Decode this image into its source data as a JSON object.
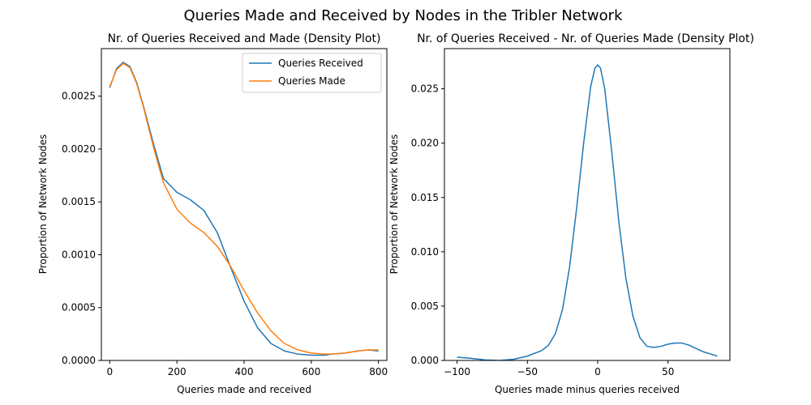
{
  "figure": {
    "suptitle": "Queries Made and Received by Nodes in the Tribler Network"
  },
  "chart_data": [
    {
      "type": "line",
      "title": "Nr. of Queries Received and Made (Density Plot)",
      "xlabel": "Queries made and received",
      "ylabel": "Proportion of Network Nodes",
      "xlim": [
        -25,
        825
      ],
      "ylim": [
        0,
        0.00295
      ],
      "xticks": [
        0,
        200,
        400,
        600,
        800
      ],
      "xtick_labels": [
        "0",
        "200",
        "400",
        "600",
        "800"
      ],
      "yticks": [
        0,
        0.0005,
        0.001,
        0.0015,
        0.002,
        0.0025
      ],
      "ytick_labels": [
        "0.0000",
        "0.0005",
        "0.0010",
        "0.0015",
        "0.0020",
        "0.0025"
      ],
      "grid": false,
      "legend_position": "upper right",
      "series": [
        {
          "name": "Queries Received",
          "color": "#1f77b4",
          "x": [
            0,
            20,
            40,
            60,
            80,
            100,
            130,
            160,
            200,
            240,
            280,
            320,
            360,
            400,
            440,
            480,
            520,
            560,
            600,
            640,
            660,
            700,
            740,
            770,
            800
          ],
          "y": [
            0.00258,
            0.00276,
            0.00282,
            0.00278,
            0.00263,
            0.00241,
            0.00205,
            0.00172,
            0.00159,
            0.00152,
            0.00142,
            0.00121,
            0.00088,
            0.00056,
            0.00031,
            0.00016,
            9e-05,
            6e-05,
            5e-05,
            5e-05,
            6e-05,
            7e-05,
            9e-05,
            0.0001,
            9e-05
          ]
        },
        {
          "name": "Queries Made",
          "color": "#ff7f0e",
          "x": [
            0,
            20,
            40,
            60,
            80,
            100,
            130,
            160,
            200,
            240,
            280,
            320,
            360,
            400,
            440,
            480,
            520,
            560,
            600,
            640,
            660,
            700,
            740,
            770,
            800
          ],
          "y": [
            0.00259,
            0.00275,
            0.00281,
            0.00277,
            0.00262,
            0.0024,
            0.00202,
            0.00168,
            0.00143,
            0.0013,
            0.00121,
            0.00108,
            0.00089,
            0.00066,
            0.00045,
            0.00028,
            0.00016,
            0.0001,
            7e-05,
            6e-05,
            6e-05,
            7e-05,
            9e-05,
            0.0001,
            0.0001
          ]
        }
      ]
    },
    {
      "type": "line",
      "title": "Nr. of Queries Received - Nr. of Queries Made (Density Plot)",
      "xlabel": "Queries made minus queries received",
      "ylabel": "Proportion of Network Nodes",
      "xlim": [
        -109,
        94
      ],
      "ylim": [
        0,
        0.0287
      ],
      "xticks": [
        -100,
        -50,
        0,
        50
      ],
      "xtick_labels": [
        "−100",
        "−50",
        "0",
        "50"
      ],
      "yticks": [
        0,
        0.005,
        0.01,
        0.015,
        0.02,
        0.025
      ],
      "ytick_labels": [
        "0.000",
        "0.005",
        "0.010",
        "0.015",
        "0.020",
        "0.025"
      ],
      "grid": false,
      "series": [
        {
          "name": "",
          "color": "#1f77b4",
          "x": [
            -100,
            -90,
            -80,
            -70,
            -60,
            -50,
            -40,
            -35,
            -30,
            -25,
            -20,
            -15,
            -10,
            -5,
            -2,
            0,
            2,
            5,
            10,
            15,
            20,
            25,
            30,
            35,
            40,
            45,
            50,
            55,
            60,
            65,
            70,
            75,
            80,
            85
          ],
          "y": [
            0.0003,
            0.0002,
            5e-05,
            0.0,
            0.0001,
            0.0004,
            0.0009,
            0.0014,
            0.0025,
            0.0047,
            0.0086,
            0.014,
            0.02,
            0.0252,
            0.0269,
            0.0272,
            0.0269,
            0.025,
            0.0192,
            0.0128,
            0.0076,
            0.0041,
            0.0021,
            0.0013,
            0.0012,
            0.0013,
            0.0015,
            0.0016,
            0.0016,
            0.0014,
            0.0011,
            0.0008,
            0.0006,
            0.0004
          ]
        }
      ]
    }
  ]
}
